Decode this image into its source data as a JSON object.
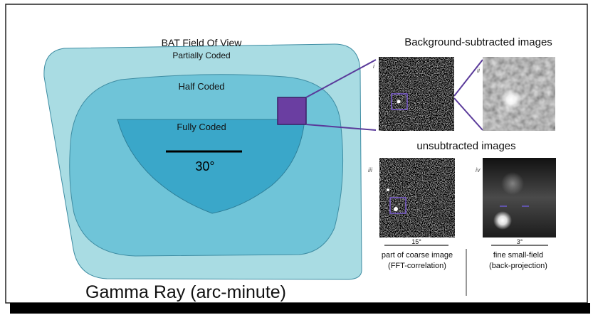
{
  "field_of_view": {
    "title": "BAT Field Of View",
    "regions": {
      "partial": {
        "label": "Partially Coded",
        "color": "#a9dce3"
      },
      "half": {
        "label": "Half Coded",
        "color": "#6fc4d8"
      },
      "full": {
        "label": "Fully Coded",
        "color": "#3aa7c9"
      }
    },
    "scale_bar": {
      "label": "30°"
    },
    "box_color": "#6a3ea1"
  },
  "panels": {
    "subtracted_heading": "Background-subtracted images",
    "unsubtracted_heading": "unsubtracted images",
    "roman": {
      "i": "i",
      "ii": "ii",
      "iii": "iii",
      "iv": "iv"
    },
    "coarse": {
      "scale": "15°",
      "caption_line1": "part of coarse image",
      "caption_line2": "(FFT-correlation)"
    },
    "fine": {
      "scale": "3°",
      "caption_line1": "fine small-field",
      "caption_line2": "(back-projection)"
    }
  },
  "footer": {
    "title": "Gamma Ray (arc-minute)"
  }
}
